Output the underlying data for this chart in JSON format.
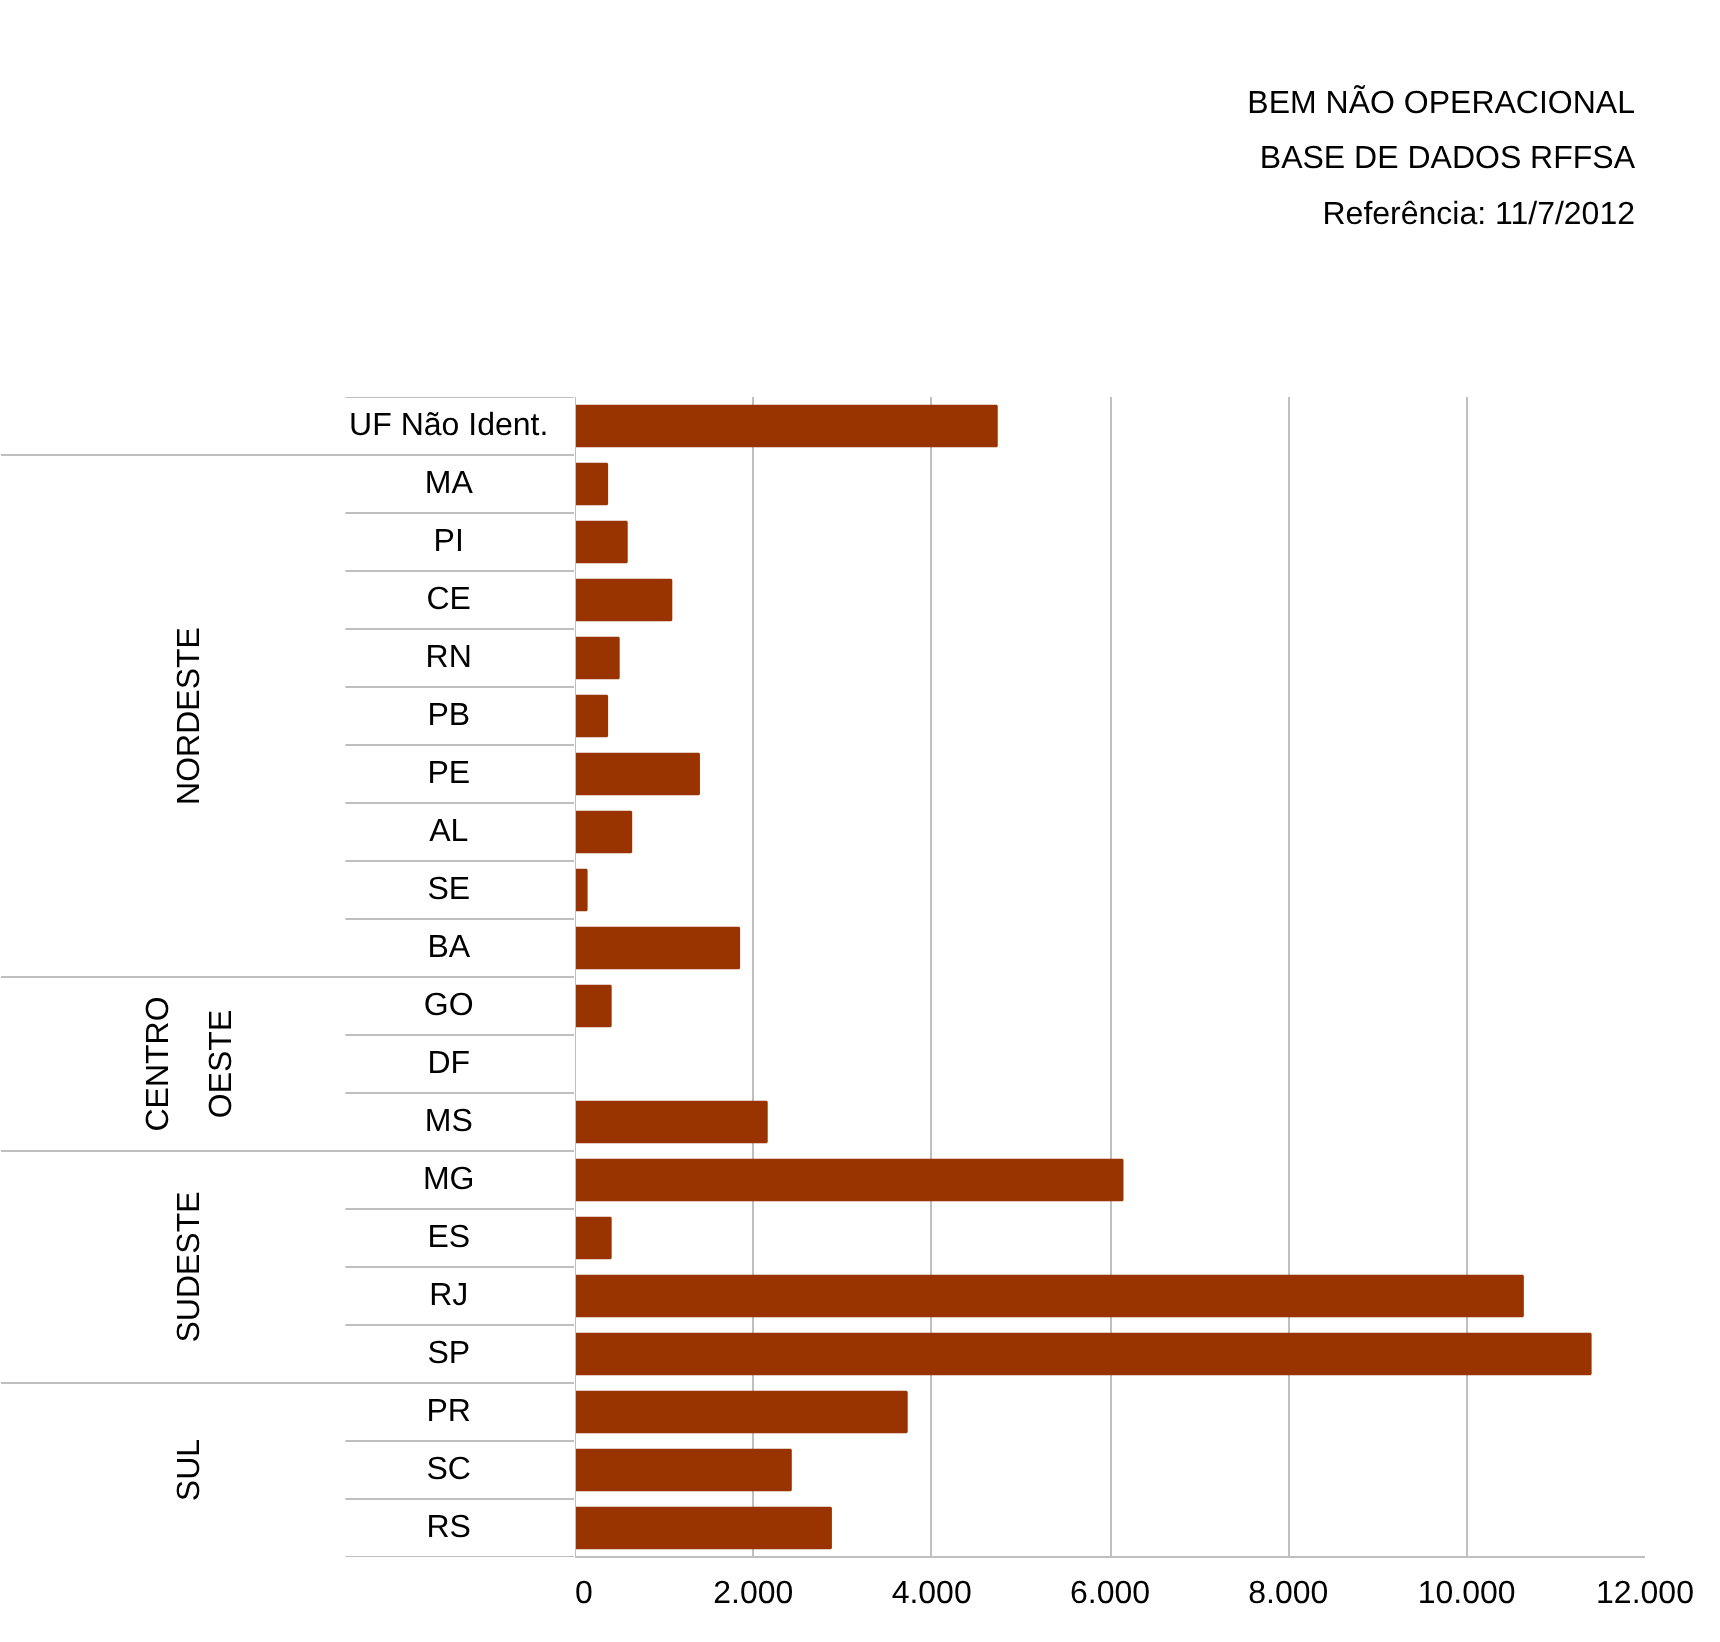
{
  "chart_data": {
    "type": "bar",
    "orientation": "horizontal",
    "title": "BEM NÃO OPERACIONAL",
    "subtitle": "BASE DE DADOS RFFSA\nReferência: 11/7/2012",
    "categories": [
      "UF Não Ident.",
      "MA",
      "PI",
      "CE",
      "RN",
      "PB",
      "PE",
      "AL",
      "SE",
      "BA",
      "GO",
      "DF",
      "MS",
      "MG",
      "ES",
      "RJ",
      "SP",
      "PR",
      "SC",
      "RS"
    ],
    "values": [
      4730,
      360,
      580,
      1080,
      490,
      360,
      1390,
      630,
      130,
      1840,
      400,
      0,
      2150,
      6140,
      400,
      10630,
      11390,
      3720,
      2420,
      2870
    ],
    "color": "#993300",
    "xlim": [
      0,
      12000
    ],
    "xticks": [
      0,
      {
        "value": 2000,
        "label": "2.000"
      },
      {
        "value": 4000,
        "label": "4.000"
      },
      {
        "value": 6000,
        "label": "6.000"
      },
      {
        "value": 8000,
        "label": "8.000"
      },
      {
        "value": 10000,
        "label": "10.000"
      },
      {
        "value": 12000,
        "label": "12.000"
      }
    ],
    "grid": "x",
    "annotations": [
      "NORDESTE",
      "CENTRO OESTE",
      "SUDESTE",
      "SUL"
    ]
  }
}
